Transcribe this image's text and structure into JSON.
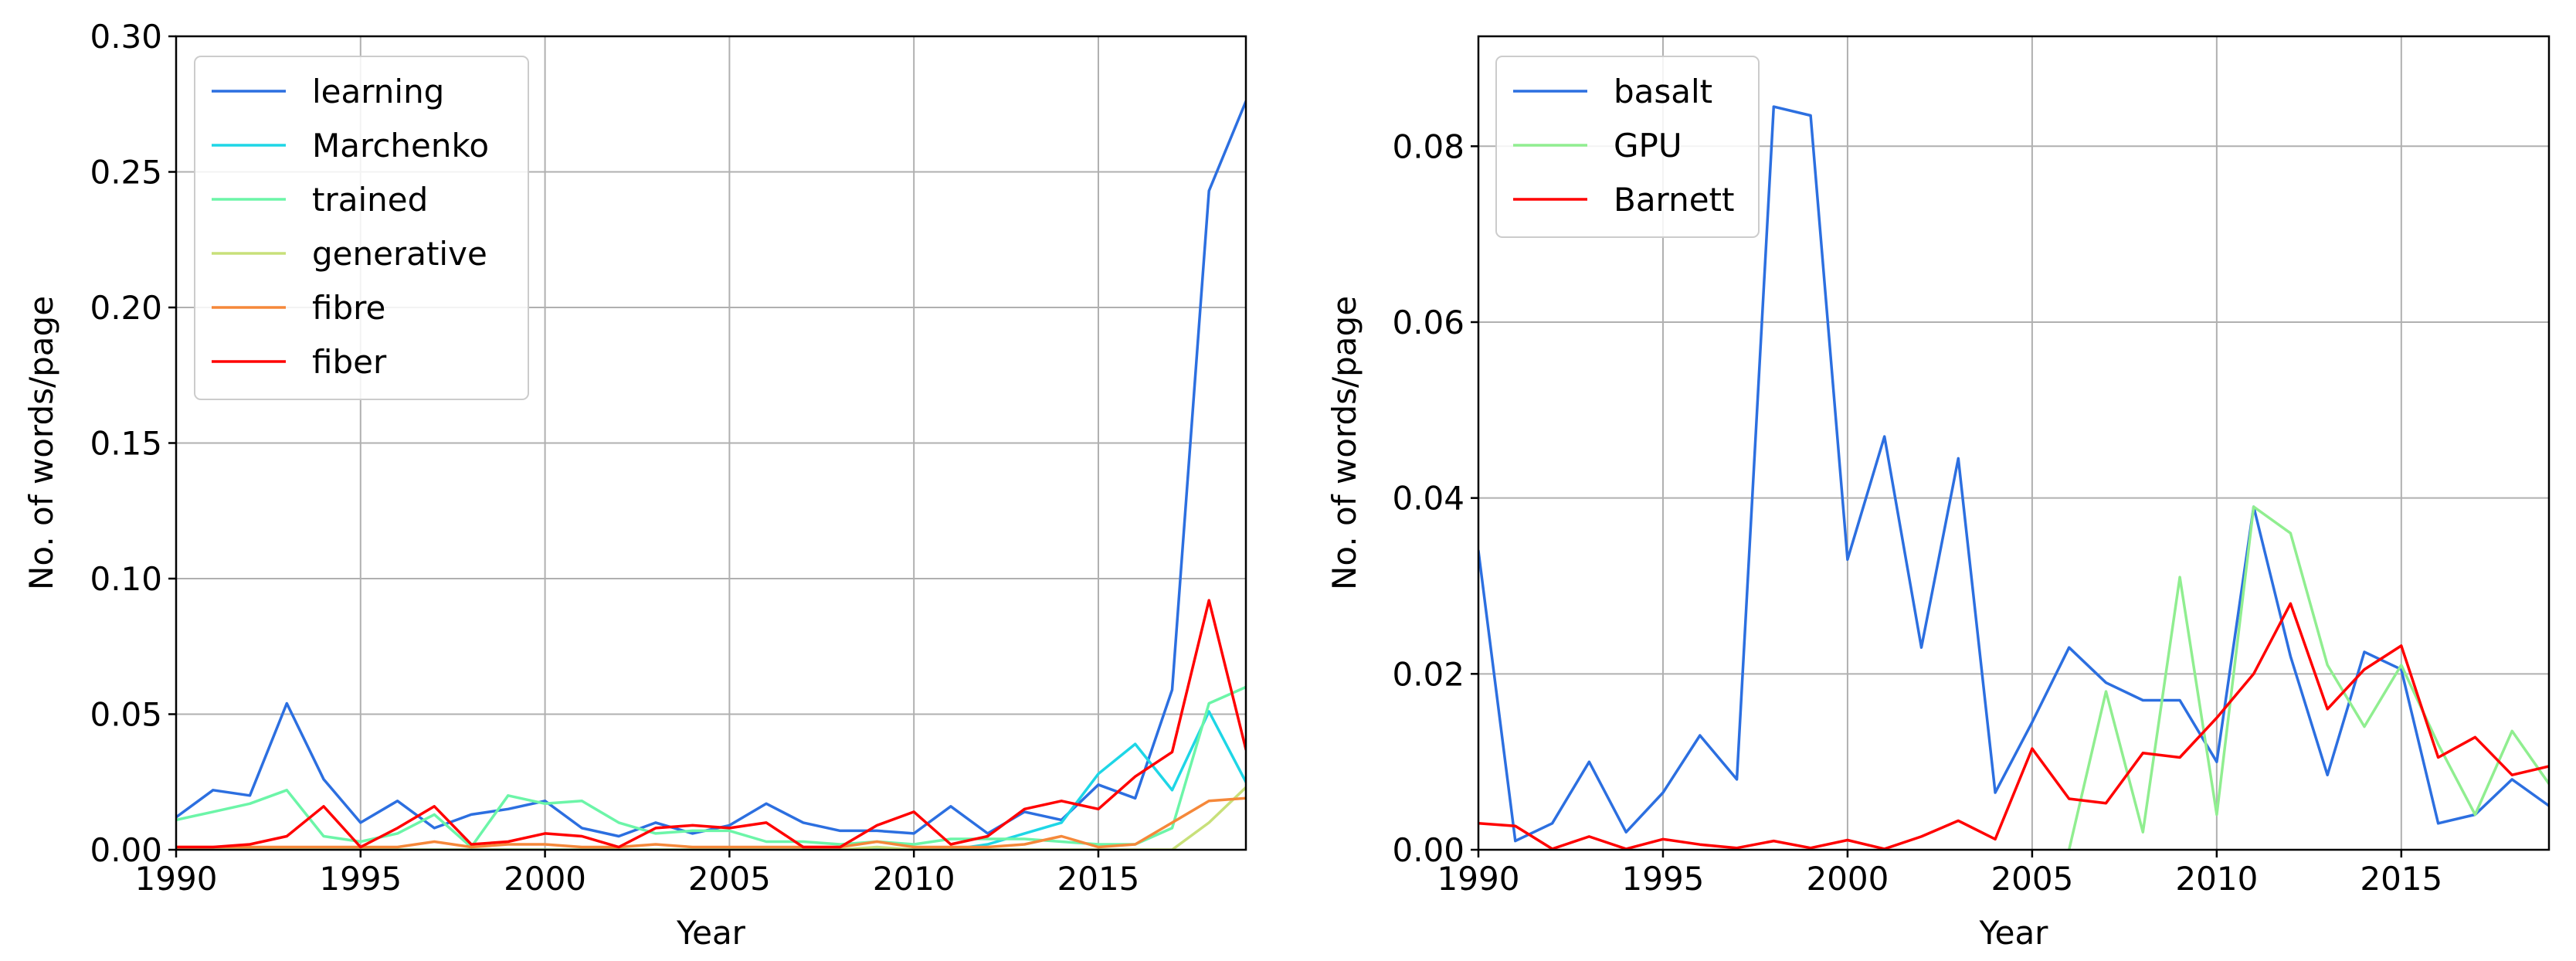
{
  "chart_data": [
    {
      "type": "line",
      "xlabel": "Year",
      "ylabel": "No. of words/page",
      "xlim": [
        1990,
        2019
      ],
      "ylim": [
        0,
        0.3
      ],
      "xticks": [
        "1990",
        "1995",
        "2000",
        "2005",
        "2010",
        "2015"
      ],
      "yticks": [
        "0.00",
        "0.05",
        "0.10",
        "0.15",
        "0.20",
        "0.25",
        "0.30"
      ],
      "grid": true,
      "legend_position": "top-left",
      "x": [
        1990,
        1991,
        1992,
        1993,
        1994,
        1995,
        1996,
        1997,
        1998,
        1999,
        2000,
        2001,
        2002,
        2003,
        2004,
        2005,
        2006,
        2007,
        2008,
        2009,
        2010,
        2011,
        2012,
        2013,
        2014,
        2015,
        2016,
        2017,
        2018,
        2019
      ],
      "series": [
        {
          "name": "learning",
          "color": "#2c6fe0",
          "values": [
            0.012,
            0.022,
            0.02,
            0.054,
            0.026,
            0.01,
            0.018,
            0.008,
            0.013,
            0.015,
            0.018,
            0.008,
            0.005,
            0.01,
            0.006,
            0.009,
            0.017,
            0.01,
            0.007,
            0.007,
            0.006,
            0.016,
            0.006,
            0.014,
            0.011,
            0.024,
            0.019,
            0.059,
            0.243,
            0.276
          ]
        },
        {
          "name": "Marchenko",
          "color": "#1ed6e6",
          "values": [
            0,
            0,
            0,
            0,
            0,
            0,
            0,
            0,
            0,
            0,
            0,
            0,
            0,
            0,
            0,
            0,
            0,
            0,
            0,
            0,
            0,
            0,
            0.002,
            0.006,
            0.01,
            0.028,
            0.039,
            0.022,
            0.051,
            0.025
          ]
        },
        {
          "name": "trained",
          "color": "#6cf5a8",
          "values": [
            0.011,
            0.014,
            0.017,
            0.022,
            0.005,
            0.003,
            0.006,
            0.013,
            0.001,
            0.02,
            0.017,
            0.018,
            0.01,
            0.006,
            0.007,
            0.007,
            0.003,
            0.003,
            0.002,
            0.003,
            0.002,
            0.004,
            0.004,
            0.004,
            0.003,
            0.002,
            0.002,
            0.008,
            0.054,
            0.06
          ]
        },
        {
          "name": "generative",
          "color": "#c8e07a",
          "values": [
            0,
            0,
            0,
            0,
            0,
            0,
            0,
            0,
            0,
            0,
            0,
            0,
            0,
            0,
            0,
            0,
            0,
            0,
            0,
            0.001,
            0,
            0,
            0,
            0,
            0,
            0,
            0,
            0,
            0.01,
            0.023
          ]
        },
        {
          "name": "fibre",
          "color": "#f5883a",
          "values": [
            0.001,
            0.001,
            0.001,
            0.001,
            0.001,
            0.001,
            0.001,
            0.003,
            0.001,
            0.002,
            0.002,
            0.001,
            0.001,
            0.002,
            0.001,
            0.001,
            0.001,
            0.001,
            0.001,
            0.003,
            0.001,
            0.001,
            0.001,
            0.002,
            0.005,
            0.001,
            0.002,
            0.01,
            0.018,
            0.019
          ]
        },
        {
          "name": "fiber",
          "color": "#ff0000",
          "values": [
            0.001,
            0.001,
            0.002,
            0.005,
            0.016,
            0.001,
            0.008,
            0.016,
            0.002,
            0.003,
            0.006,
            0.005,
            0.001,
            0.008,
            0.009,
            0.008,
            0.01,
            0.001,
            0.001,
            0.009,
            0.014,
            0.002,
            0.005,
            0.015,
            0.018,
            0.015,
            0.027,
            0.036,
            0.092,
            0.037
          ]
        }
      ]
    },
    {
      "type": "line",
      "xlabel": "Year",
      "ylabel": "No. of words/page",
      "xlim": [
        1990,
        2019
      ],
      "ylim": [
        0,
        0.0925
      ],
      "xticks": [
        "1990",
        "1995",
        "2000",
        "2005",
        "2010",
        "2015"
      ],
      "yticks": [
        "0.00",
        "0.02",
        "0.04",
        "0.06",
        "0.08"
      ],
      "grid": true,
      "legend_position": "top-left",
      "x": [
        1990,
        1991,
        1992,
        1993,
        1994,
        1995,
        1996,
        1997,
        1998,
        1999,
        2000,
        2001,
        2002,
        2003,
        2004,
        2005,
        2006,
        2007,
        2008,
        2009,
        2010,
        2011,
        2012,
        2013,
        2014,
        2015,
        2016,
        2017,
        2018,
        2019
      ],
      "series": [
        {
          "name": "basalt",
          "color": "#2c6fe0",
          "values": [
            0.034,
            0.001,
            0.003,
            0.01,
            0.002,
            0.0065,
            0.013,
            0.008,
            0.0845,
            0.0835,
            0.033,
            0.047,
            0.023,
            0.0445,
            0.0065,
            0.0145,
            0.023,
            0.019,
            0.017,
            0.017,
            0.01,
            0.039,
            0.022,
            0.0085,
            0.0225,
            0.0205,
            0.003,
            0.004,
            0.008,
            0.005
          ]
        },
        {
          "name": "GPU",
          "color": "#90ee90",
          "values": [
            null,
            null,
            null,
            null,
            null,
            null,
            null,
            null,
            null,
            null,
            null,
            null,
            null,
            null,
            null,
            null,
            0.0,
            0.018,
            0.002,
            0.031,
            0.004,
            0.039,
            0.036,
            0.021,
            0.014,
            0.021,
            0.012,
            0.004,
            0.0135,
            0.0075
          ]
        },
        {
          "name": "Barnett",
          "color": "#ff0000",
          "values": [
            0.003,
            0.0027,
            0.0001,
            0.0015,
            0.0001,
            0.0012,
            0.0006,
            0.0002,
            0.001,
            0.0002,
            0.0011,
            0.0001,
            0.0015,
            0.0033,
            0.0012,
            0.0115,
            0.0058,
            0.0053,
            0.011,
            0.0105,
            0.015,
            0.02,
            0.028,
            0.016,
            0.0205,
            0.0232,
            0.0105,
            0.0128,
            0.0085,
            0.0095
          ]
        }
      ]
    }
  ]
}
